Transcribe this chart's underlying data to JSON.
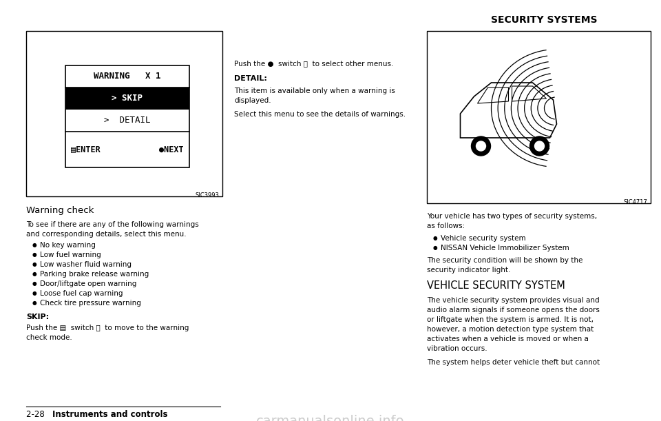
{
  "bg_color": "#ffffff",
  "page_width": 9.6,
  "page_height": 6.11,
  "dpi": 100,
  "left_panel": {
    "screen_label": "SIC3993",
    "warning_title": "WARNING   X 1",
    "skip_label": "> SKIP",
    "detail_label": ">  DETAIL",
    "enter_label": "▤ENTER",
    "next_label": "●NEXT"
  },
  "left_text": {
    "section_title": "Warning check",
    "body_line1": "To see if there are any of the following warnings",
    "body_line2": "and corresponding details, select this menu.",
    "bullets": [
      "No key warning",
      "Low fuel warning",
      "Low washer fluid warning",
      "Parking brake release warning",
      "Door/liftgate open warning",
      "Loose fuel cap warning",
      "Check tire pressure warning"
    ],
    "skip_heading": "SKIP:",
    "skip_body_line1": "Push the ▤  switch Ⓐ  to move to the warning",
    "skip_body_line2": "check mode.",
    "footer_num": "2-28",
    "footer_text": "Instruments and controls"
  },
  "middle_text": {
    "push_line": "Push the ●  switch Ⓑ  to select other menus.",
    "detail_heading": "DETAIL:",
    "detail_body_line1": "This item is available only when a warning is",
    "detail_body_line2": "displayed.",
    "select_line": "Select this menu to see the details of warnings."
  },
  "right_panel": {
    "label": "SIC4717",
    "section_heading": "SECURITY SYSTEMS"
  },
  "right_text": {
    "para1_line1": "Your vehicle has two types of security systems,",
    "para1_line2": "as follows:",
    "bullets": [
      "Vehicle security system",
      "NISSAN Vehicle Immobilizer System"
    ],
    "para2_line1": "The security condition will be shown by the",
    "para2_line2": "security indicator light.",
    "subsection": "VEHICLE SECURITY SYSTEM",
    "para3_line1": "The vehicle security system provides visual and",
    "para3_line2": "audio alarm signals if someone opens the doors",
    "para3_line3": "or liftgate when the system is armed. It is not,",
    "para3_line4": "however, a motion detection type system that",
    "para3_line5": "activates when a vehicle is moved or when a",
    "para3_line6": "vibration occurs.",
    "para4": "The system helps deter vehicle theft but cannot"
  }
}
